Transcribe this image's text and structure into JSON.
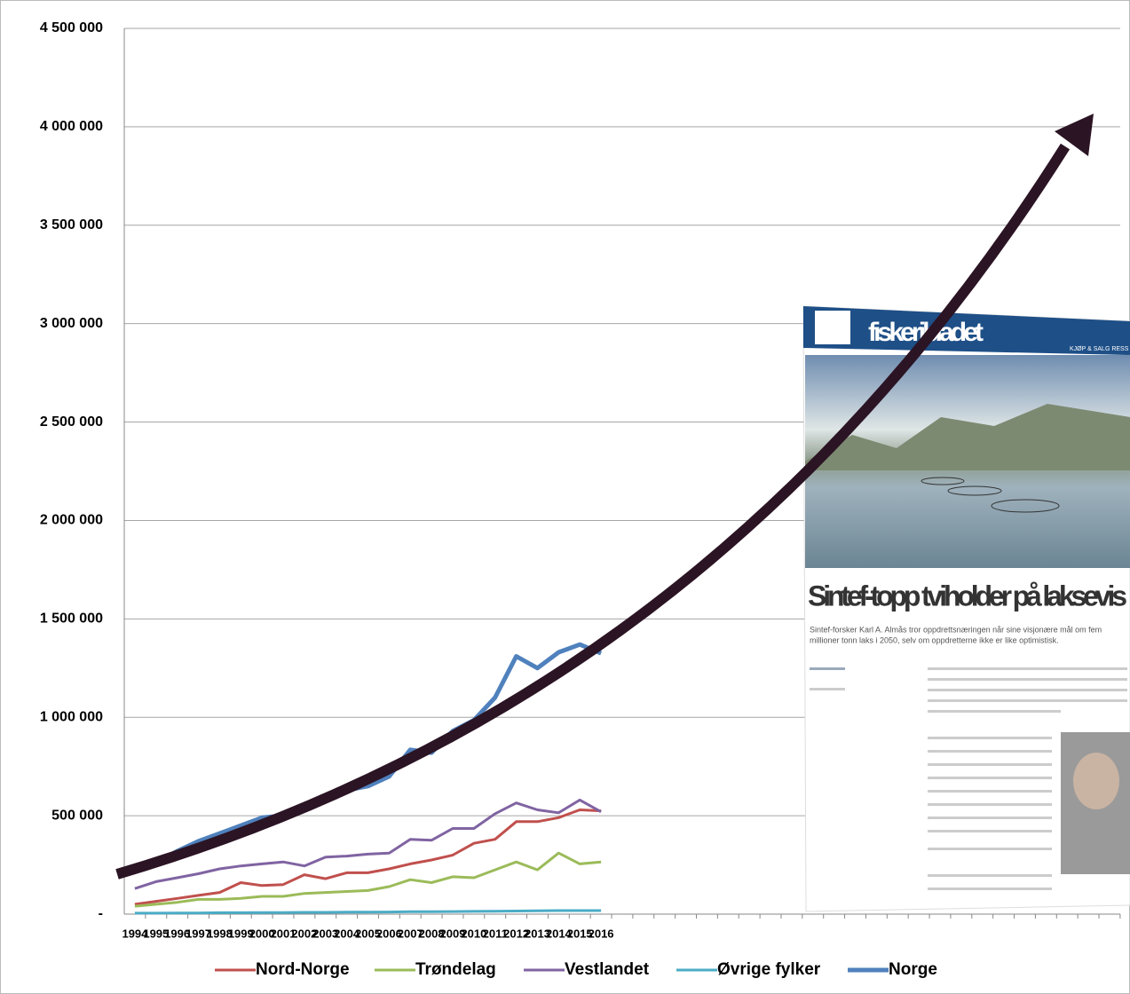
{
  "chart_data": {
    "type": "line",
    "categories": [
      "1994",
      "1995",
      "1996",
      "1997",
      "1998",
      "1999",
      "2000",
      "2001",
      "2002",
      "2003",
      "2004",
      "2005",
      "2006",
      "2007",
      "2008",
      "2009",
      "2010",
      "2011",
      "2012",
      "2013",
      "2014",
      "2015",
      "2016",
      null,
      null,
      null,
      null,
      null,
      null,
      null,
      null,
      null,
      null,
      null,
      null,
      null,
      null,
      null,
      null,
      null,
      null,
      null,
      null,
      null,
      null,
      null,
      null
    ],
    "series": [
      {
        "name": "Nord-Norge",
        "color": "#c0504d",
        "values": [
          50000,
          65000,
          80000,
          95000,
          110000,
          160000,
          145000,
          150000,
          200000,
          180000,
          210000,
          210000,
          230000,
          255000,
          275000,
          300000,
          360000,
          380000,
          470000,
          470000,
          490000,
          530000,
          525000,
          null,
          null,
          null,
          null,
          null,
          null,
          null,
          null,
          null,
          null,
          null,
          null,
          null,
          null,
          null,
          null,
          null,
          null,
          null,
          null,
          null,
          null,
          null,
          null
        ]
      },
      {
        "name": "Trøndelag",
        "color": "#9bbb59",
        "values": [
          40000,
          50000,
          60000,
          75000,
          75000,
          80000,
          90000,
          90000,
          105000,
          110000,
          115000,
          120000,
          140000,
          175000,
          160000,
          190000,
          185000,
          225000,
          265000,
          225000,
          310000,
          255000,
          265000,
          null,
          null,
          null,
          null,
          null,
          null,
          null,
          null,
          null,
          null,
          null,
          null,
          null,
          null,
          null,
          null,
          null,
          null,
          null,
          null,
          null,
          null,
          null,
          null
        ]
      },
      {
        "name": "Vestlandet",
        "color": "#8064a2",
        "values": [
          130000,
          165000,
          185000,
          205000,
          230000,
          245000,
          255000,
          265000,
          245000,
          290000,
          295000,
          305000,
          310000,
          380000,
          375000,
          435000,
          435000,
          510000,
          565000,
          530000,
          515000,
          580000,
          520000,
          null,
          null,
          null,
          null,
          null,
          null,
          null,
          null,
          null,
          null,
          null,
          null,
          null,
          null,
          null,
          null,
          null,
          null,
          null,
          null,
          null,
          null,
          null,
          null
        ]
      },
      {
        "name": "Øvrige fylker",
        "color": "#4bacc6",
        "values": [
          5000,
          5000,
          6000,
          6000,
          7000,
          7000,
          8000,
          8000,
          9000,
          9000,
          10000,
          10000,
          11000,
          12000,
          12000,
          13000,
          14000,
          15000,
          16000,
          17000,
          18000,
          18000,
          18000,
          null,
          null,
          null,
          null,
          null,
          null,
          null,
          null,
          null,
          null,
          null,
          null,
          null,
          null,
          null,
          null,
          null,
          null,
          null,
          null,
          null,
          null,
          null,
          null
        ]
      },
      {
        "name": "Norge",
        "color": "#4f81bd",
        "values": [
          215000,
          260000,
          320000,
          370000,
          410000,
          450000,
          490000,
          500000,
          550000,
          580000,
          630000,
          650000,
          700000,
          835000,
          820000,
          930000,
          985000,
          1100000,
          1310000,
          1250000,
          1330000,
          1370000,
          1325000,
          null,
          null,
          null,
          null,
          null,
          null,
          null,
          null,
          null,
          null,
          null,
          null,
          null,
          null,
          null,
          null,
          null,
          null,
          null,
          null,
          null,
          null,
          null,
          null
        ]
      }
    ],
    "ylim": [
      0,
      4500000
    ],
    "yticks": [
      {
        "value": 0,
        "label": "-"
      },
      {
        "value": 500000,
        "label": "500 000"
      },
      {
        "value": 1000000,
        "label": "1 000 000"
      },
      {
        "value": 1500000,
        "label": "1 500 000"
      },
      {
        "value": 2000000,
        "label": "2 000 000"
      },
      {
        "value": 2500000,
        "label": "2 500 000"
      },
      {
        "value": 3000000,
        "label": "3 000 000"
      },
      {
        "value": 3500000,
        "label": "3 500 000"
      },
      {
        "value": 4000000,
        "label": "4 000 000"
      },
      {
        "value": 4500000,
        "label": "4 500 000"
      }
    ],
    "grid": true,
    "legend": "bottom"
  },
  "overlay": {
    "masthead": "fiskeribladet",
    "nav": "KJØP & SALG   RESS",
    "headline": "Sintef-topp tviholder på laksevis",
    "lead_1": "Sintef-forsker Karl A. Almås tror oppdrettsnæringen når sine visjonære mål om fem",
    "lead_2": "millioner tonn laks i 2050, selv om oppdretterne ikke er like optimistisk."
  }
}
